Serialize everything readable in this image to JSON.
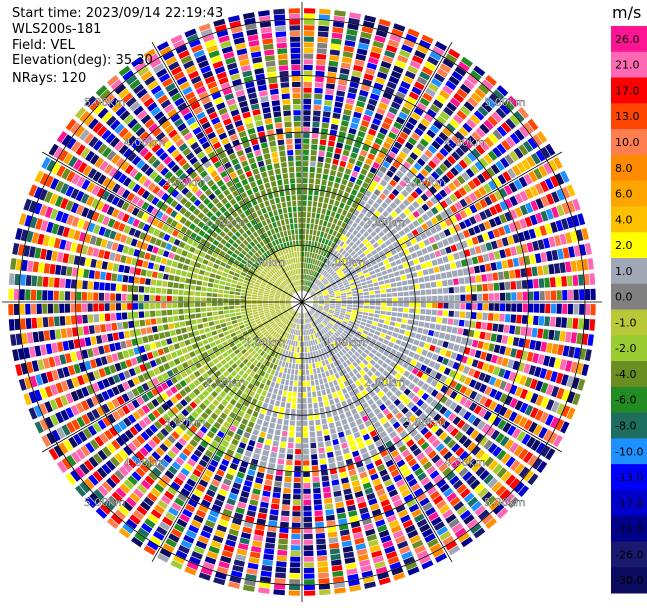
{
  "header": {
    "start_time": "Start time: 2023/09/14 22:19:43",
    "instrument": "WLS200s-181",
    "field": "Field: VEL",
    "elevation": "Elevation(deg): 35.30",
    "nrays": "NRays: 120"
  },
  "chart_data": {
    "type": "polar-ppi",
    "field": "VEL",
    "rays": 120,
    "range_rings_km": [
      1.0,
      2.0,
      3.0,
      4.0,
      5.0
    ],
    "ring_labels": [
      "1.00km",
      "2.00km",
      "3.00km",
      "4.00km",
      "5.00km"
    ],
    "radial_lines_deg": [
      0,
      30,
      60,
      90,
      120,
      150,
      180,
      210,
      240,
      270,
      300,
      330
    ],
    "near_field_pattern": {
      "description": "positive velocities (yellow/light orange) to the east and south, small negative values (grey/green) to the west and north within ~2.5 km; noisy multicolor speckle beyond",
      "east_sector_value": 1.0,
      "west_sector_value": -3.0,
      "north_sector_value": -5.0,
      "noise_start_km": 3.0
    },
    "colorbar": {
      "unit": "m/s",
      "ticks": [
        "26.0",
        "21.0",
        "17.0",
        "13.0",
        "10.0",
        "8.0",
        "6.0",
        "4.0",
        "2.0",
        "1.0",
        "0.0",
        "-1.0",
        "-2.0",
        "-4.0",
        "-6.0",
        "-8.0",
        "-10.0",
        "-13.0",
        "-17.0",
        "-21.0",
        "-26.0",
        "-30.0"
      ],
      "colors": [
        "#ff1493",
        "#ff69b4",
        "#ff0000",
        "#ff4500",
        "#ff7f50",
        "#ff8c00",
        "#ffa500",
        "#ffc000",
        "#ffff00",
        "#a0a8b8",
        "#808080",
        "#b8c838",
        "#9acd32",
        "#6b8e23",
        "#228b22",
        "#1e6e60",
        "#1e90ff",
        "#0000ff",
        "#0000cd",
        "#00008b",
        "#191970",
        "#0b0b60"
      ]
    }
  }
}
